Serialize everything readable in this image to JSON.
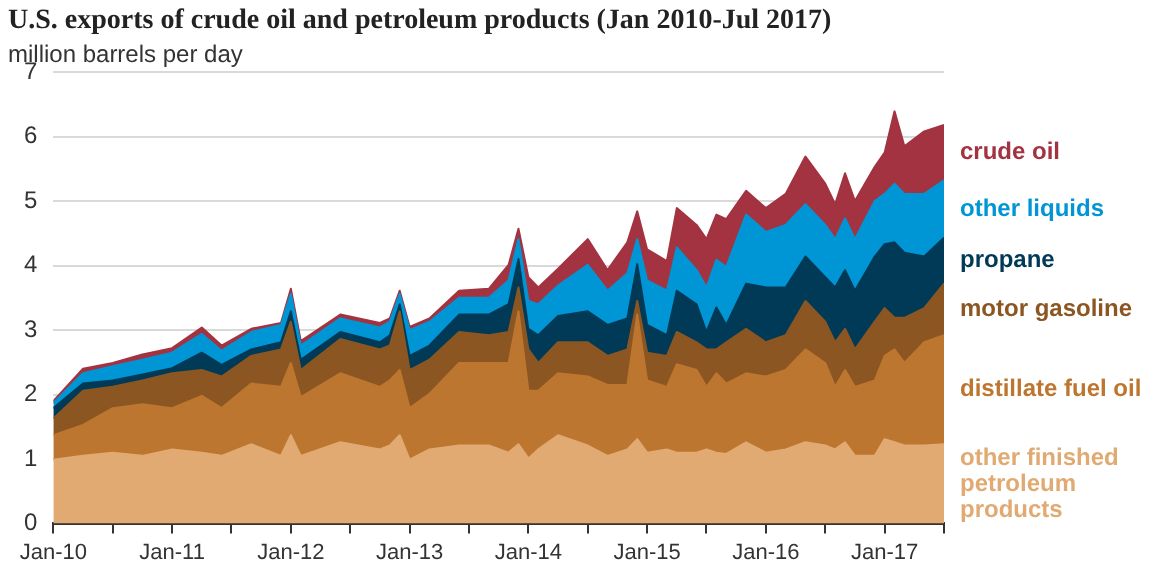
{
  "chart_data": {
    "type": "area",
    "stacked": true,
    "title": "U.S. exports of crude oil and petroleum products (Jan 2010-Jul 2017)",
    "ylabel": "million barrels per day",
    "x": [
      "2010-01",
      "2010-04",
      "2010-07",
      "2010-10",
      "2011-01",
      "2011-04",
      "2011-06",
      "2011-09",
      "2011-12",
      "2012-01",
      "2012-02",
      "2012-06",
      "2012-10",
      "2012-11",
      "2012-12",
      "2013-01",
      "2013-03",
      "2013-06",
      "2013-09",
      "2013-11",
      "2013-12",
      "2014-01",
      "2014-02",
      "2014-04",
      "2014-07",
      "2014-09",
      "2014-11",
      "2014-12",
      "2015-01",
      "2015-03",
      "2015-04",
      "2015-06",
      "2015-07",
      "2015-08",
      "2015-09",
      "2015-11",
      "2016-01",
      "2016-03",
      "2016-05",
      "2016-07",
      "2016-08",
      "2016-09",
      "2016-10",
      "2016-12",
      "2017-01",
      "2017-02",
      "2017-03",
      "2017-05",
      "2017-07"
    ],
    "series": [
      {
        "name": "other finished petroleum products",
        "color": "#e0aa72",
        "values": [
          0.99,
          1.05,
          1.1,
          1.05,
          1.15,
          1.1,
          1.05,
          1.23,
          1.05,
          1.37,
          1.05,
          1.26,
          1.15,
          1.21,
          1.37,
          0.99,
          1.15,
          1.21,
          1.21,
          1.1,
          1.23,
          1.01,
          1.15,
          1.37,
          1.21,
          1.05,
          1.15,
          1.31,
          1.1,
          1.15,
          1.1,
          1.1,
          1.15,
          1.1,
          1.08,
          1.26,
          1.1,
          1.15,
          1.26,
          1.21,
          1.15,
          1.26,
          1.05,
          1.05,
          1.31,
          1.26,
          1.21,
          1.21,
          1.23
        ]
      },
      {
        "name": "distillate fuel oil",
        "color": "#bd762f",
        "values": [
          0.38,
          0.48,
          0.69,
          0.8,
          0.64,
          0.88,
          0.74,
          0.94,
          1.07,
          1.12,
          0.91,
          1.07,
          0.97,
          1.01,
          1.01,
          0.8,
          0.86,
          1.28,
          1.28,
          1.39,
          2.06,
          1.05,
          0.91,
          0.96,
          1.07,
          1.1,
          1.0,
          1.93,
          1.12,
          0.97,
          1.37,
          1.28,
          0.97,
          1.23,
          1.09,
          1.07,
          1.18,
          1.23,
          1.44,
          1.28,
          0.97,
          1.12,
          1.07,
          1.17,
          1.29,
          1.44,
          1.28,
          1.6,
          1.69
        ]
      },
      {
        "name": "motor gasoline",
        "color": "#8b5622",
        "values": [
          0.26,
          0.53,
          0.33,
          0.37,
          0.54,
          0.4,
          0.49,
          0.43,
          0.58,
          0.64,
          0.42,
          0.53,
          0.58,
          0.54,
          0.91,
          0.59,
          0.53,
          0.48,
          0.43,
          0.48,
          0.37,
          0.64,
          0.43,
          0.48,
          0.53,
          0.45,
          0.55,
          0.21,
          0.43,
          0.48,
          0.5,
          0.43,
          0.58,
          0.37,
          0.64,
          0.69,
          0.53,
          0.54,
          0.75,
          0.64,
          0.69,
          0.64,
          0.58,
          0.91,
          0.74,
          0.49,
          0.7,
          0.53,
          0.8
        ]
      },
      {
        "name": "propane",
        "color": "#003a56",
        "values": [
          0.16,
          0.11,
          0.1,
          0.09,
          0.08,
          0.27,
          0.18,
          0.1,
          0.11,
          0.16,
          0.16,
          0.11,
          0.11,
          0.16,
          0.11,
          0.22,
          0.22,
          0.27,
          0.32,
          0.43,
          0.44,
          0.32,
          0.43,
          0.41,
          0.48,
          0.48,
          0.48,
          0.57,
          0.43,
          0.32,
          0.64,
          0.59,
          0.27,
          0.65,
          0.27,
          0.7,
          0.85,
          0.74,
          0.69,
          0.69,
          0.85,
          0.91,
          0.91,
          1.01,
          0.99,
          1.17,
          1.01,
          0.8,
          0.71
        ]
      },
      {
        "name": "other liquids",
        "color": "#0096d6",
        "values": [
          0.08,
          0.16,
          0.22,
          0.23,
          0.24,
          0.29,
          0.22,
          0.27,
          0.27,
          0.27,
          0.22,
          0.21,
          0.23,
          0.21,
          0.16,
          0.4,
          0.37,
          0.26,
          0.26,
          0.37,
          0.31,
          0.43,
          0.48,
          0.47,
          0.72,
          0.53,
          0.7,
          0.39,
          0.69,
          0.69,
          0.67,
          0.53,
          0.69,
          0.74,
          0.9,
          1.07,
          0.86,
          0.97,
          0.81,
          0.81,
          0.75,
          0.8,
          0.8,
          0.86,
          0.78,
          0.91,
          0.91,
          0.97,
          0.89
        ]
      },
      {
        "name": "crude oil",
        "color": "#a33341",
        "values": [
          0.03,
          0.07,
          0.05,
          0.08,
          0.07,
          0.1,
          0.08,
          0.05,
          0.03,
          0.08,
          0.07,
          0.06,
          0.07,
          0.05,
          0.05,
          0.05,
          0.05,
          0.11,
          0.14,
          0.24,
          0.16,
          0.37,
          0.26,
          0.26,
          0.4,
          0.32,
          0.48,
          0.43,
          0.48,
          0.46,
          0.61,
          0.7,
          0.75,
          0.7,
          0.74,
          0.37,
          0.37,
          0.48,
          0.74,
          0.64,
          0.54,
          0.7,
          0.59,
          0.53,
          0.64,
          1.12,
          0.74,
          0.97,
          0.86
        ]
      }
    ],
    "xlim": [
      "2010-01",
      "2017-07"
    ],
    "xticks": [
      {
        "value": "2010-01",
        "label": "Jan-10"
      },
      {
        "value": "2010-07",
        "label": null
      },
      {
        "value": "2011-01",
        "label": "Jan-11"
      },
      {
        "value": "2011-07",
        "label": null
      },
      {
        "value": "2012-01",
        "label": "Jan-12"
      },
      {
        "value": "2012-07",
        "label": null
      },
      {
        "value": "2013-01",
        "label": "Jan-13"
      },
      {
        "value": "2013-07",
        "label": null
      },
      {
        "value": "2014-01",
        "label": "Jan-14"
      },
      {
        "value": "2014-07",
        "label": null
      },
      {
        "value": "2015-01",
        "label": "Jan-15"
      },
      {
        "value": "2015-07",
        "label": null
      },
      {
        "value": "2016-01",
        "label": "Jan-16"
      },
      {
        "value": "2016-07",
        "label": null
      },
      {
        "value": "2017-01",
        "label": "Jan-17"
      },
      {
        "value": "2017-07",
        "label": null
      }
    ],
    "ylim": [
      0,
      7
    ],
    "yticks": [
      0,
      1,
      2,
      3,
      4,
      5,
      6,
      7
    ],
    "grid": "y",
    "legend": "right"
  }
}
